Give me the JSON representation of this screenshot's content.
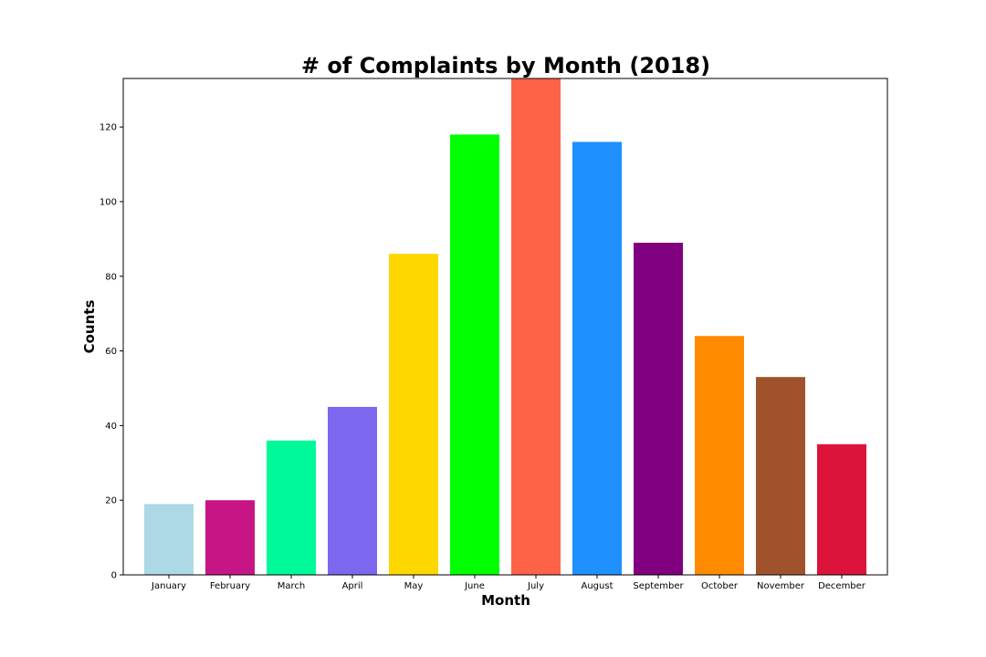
{
  "chart_data": {
    "type": "bar",
    "title": "# of Complaints by Month (2018)",
    "xlabel": "Month",
    "ylabel": "Counts",
    "categories": [
      "January",
      "February",
      "March",
      "April",
      "May",
      "June",
      "July",
      "August",
      "September",
      "October",
      "November",
      "December"
    ],
    "values": [
      19,
      20,
      36,
      45,
      86,
      118,
      133,
      116,
      89,
      64,
      53,
      35
    ],
    "colors": [
      "#add8e6",
      "#c71585",
      "#00fa9a",
      "#7b68ee",
      "#ffd700",
      "#00ff00",
      "#ff6347",
      "#1e90ff",
      "#800080",
      "#ff8c00",
      "#a0522d",
      "#dc143c"
    ],
    "ylim": [
      0,
      133
    ],
    "yticks": [
      0,
      20,
      40,
      60,
      80,
      100,
      120
    ],
    "grid": false,
    "legend": "none"
  }
}
